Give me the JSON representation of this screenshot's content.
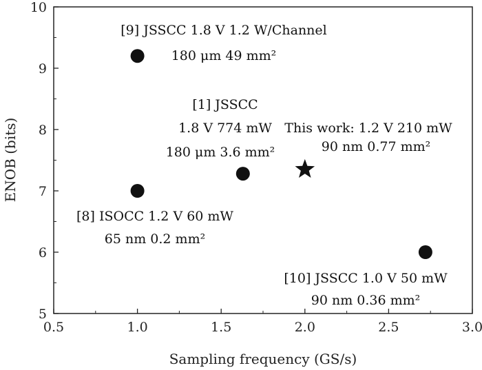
{
  "chart_data": {
    "type": "scatter",
    "xlabel": "Sampling frequency (GS/s)",
    "ylabel": "ENOB (bits)",
    "xlim": [
      0.5,
      3.0
    ],
    "ylim": [
      5,
      10
    ],
    "xticks": [
      "0.5",
      "1.0",
      "1.5",
      "2.0",
      "2.5",
      "3.0"
    ],
    "yticks": [
      "5",
      "6",
      "7",
      "8",
      "9",
      "10"
    ],
    "grid": false,
    "points": [
      {
        "x": 1.0,
        "y": 9.2,
        "marker": "circle",
        "label": [
          "[9] JSSCC 1.8 V 1.2 W/Channel",
          "180 μm 49 mm²"
        ]
      },
      {
        "x": 1.63,
        "y": 7.28,
        "marker": "circle",
        "label": [
          "[1] JSSCC",
          "1.8 V 774 mW",
          "180 μm 3.6 mm²"
        ]
      },
      {
        "x": 2.0,
        "y": 7.35,
        "marker": "star",
        "label": [
          "This work: 1.2 V 210 mW",
          "90 nm 0.77 mm²"
        ]
      },
      {
        "x": 1.0,
        "y": 7.0,
        "marker": "circle",
        "label": [
          "[8] ISOCC 1.2 V 60 mW",
          "65 nm 0.2 mm²"
        ]
      },
      {
        "x": 2.72,
        "y": 6.0,
        "marker": "circle",
        "label": [
          "[10] JSSCC 1.0 V 50 mW",
          "90 nm 0.36 mm²"
        ]
      }
    ]
  }
}
